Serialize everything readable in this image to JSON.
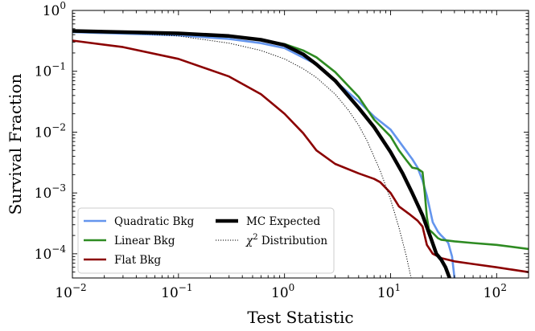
{
  "chart_data": {
    "type": "line",
    "title": "",
    "xlabel": "Test Statistic",
    "ylabel": "Survival Fraction",
    "xscale": "log",
    "yscale": "log",
    "xlim": [
      0.01,
      200
    ],
    "ylim": [
      4e-05,
      1
    ],
    "xticks": [
      {
        "value": 0.01,
        "base": "10",
        "exp": "−2"
      },
      {
        "value": 0.1,
        "base": "10",
        "exp": "−1"
      },
      {
        "value": 1,
        "base": "10",
        "exp": "0"
      },
      {
        "value": 10,
        "base": "10",
        "exp": "1"
      },
      {
        "value": 100,
        "base": "10",
        "exp": "2"
      }
    ],
    "yticks": [
      {
        "value": 0.0001,
        "base": "10",
        "exp": "−4"
      },
      {
        "value": 0.001,
        "base": "10",
        "exp": "−3"
      },
      {
        "value": 0.01,
        "base": "10",
        "exp": "−2"
      },
      {
        "value": 0.1,
        "base": "10",
        "exp": "−1"
      },
      {
        "value": 1,
        "base": "10",
        "exp": "0"
      }
    ],
    "legend_position": "lower-left",
    "series": [
      {
        "name": "Quadratic Bkg",
        "color": "#6495ed",
        "style": "solid",
        "weight": "normal",
        "x": [
          0.01,
          0.1,
          0.3,
          0.6,
          1,
          2,
          3,
          5,
          7,
          10,
          13,
          16,
          18,
          20,
          22,
          25,
          28,
          30,
          33,
          35,
          38,
          40
        ],
        "y": [
          0.44,
          0.39,
          0.34,
          0.29,
          0.24,
          0.13,
          0.069,
          0.032,
          0.018,
          0.011,
          0.0059,
          0.0036,
          0.0026,
          0.0016,
          0.0009,
          0.00033,
          0.00023,
          0.0002,
          0.00017,
          0.00015,
          9e-05,
          4e-05
        ]
      },
      {
        "name": "Linear Bkg",
        "color": "#2e8b22",
        "style": "solid",
        "weight": "normal",
        "x": [
          0.01,
          0.1,
          0.3,
          0.6,
          1,
          1.5,
          2,
          3,
          5,
          7,
          10,
          12,
          14,
          16,
          18,
          20,
          21,
          22,
          23,
          25,
          28,
          30,
          40,
          60,
          100,
          200
        ],
        "y": [
          0.45,
          0.41,
          0.37,
          0.33,
          0.28,
          0.22,
          0.17,
          0.097,
          0.038,
          0.016,
          0.0085,
          0.005,
          0.0035,
          0.0026,
          0.0025,
          0.0022,
          0.001,
          0.0004,
          0.00025,
          0.00022,
          0.00018,
          0.00017,
          0.00016,
          0.00015,
          0.00014,
          0.00012
        ]
      },
      {
        "name": "Flat Bkg",
        "color": "#8b0000",
        "style": "solid",
        "weight": "normal",
        "x": [
          0.01,
          0.03,
          0.1,
          0.3,
          0.6,
          1,
          1.5,
          2,
          3,
          5,
          7,
          8,
          10,
          12,
          15,
          18,
          20,
          22,
          25,
          30,
          40,
          60,
          100,
          200
        ],
        "y": [
          0.32,
          0.25,
          0.16,
          0.082,
          0.042,
          0.02,
          0.0096,
          0.005,
          0.003,
          0.0021,
          0.0017,
          0.0015,
          0.001,
          0.0006,
          0.00045,
          0.00035,
          0.00028,
          0.00014,
          0.0001,
          8.5e-05,
          7.5e-05,
          6.8e-05,
          6e-05,
          5e-05
        ]
      },
      {
        "name": "MC Expected",
        "color": "#000000",
        "style": "solid",
        "weight": "bold",
        "x": [
          0.01,
          0.1,
          0.3,
          0.6,
          1,
          1.5,
          2,
          3,
          5,
          7,
          10,
          13,
          16,
          20,
          24,
          27,
          30,
          33,
          36
        ],
        "y": [
          0.46,
          0.42,
          0.38,
          0.33,
          0.27,
          0.19,
          0.13,
          0.07,
          0.025,
          0.012,
          0.0047,
          0.0021,
          0.001,
          0.00043,
          0.00018,
          0.0001,
          8e-05,
          6e-05,
          4e-05
        ]
      },
      {
        "name": "χ² Distribution",
        "label_main": "χ",
        "label_sup": "2",
        "label_rest": "Distribution",
        "color": "#000000",
        "style": "dotted",
        "weight": "thin",
        "x": [
          0.01,
          0.03,
          0.1,
          0.3,
          0.6,
          1,
          1.5,
          2,
          3,
          4,
          5,
          6,
          8,
          10,
          12,
          14,
          16
        ],
        "y": [
          0.46,
          0.43,
          0.38,
          0.29,
          0.22,
          0.16,
          0.11,
          0.079,
          0.042,
          0.023,
          0.013,
          0.0072,
          0.0023,
          0.00078,
          0.00027,
          9.5e-05,
          3.3e-05
        ]
      }
    ]
  }
}
